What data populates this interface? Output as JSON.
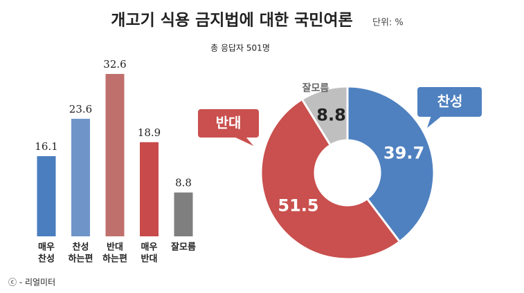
{
  "title": "개고기 식용 금지법에 대한 국민여론",
  "unit": "단위: %",
  "subtitle": "총 응답자 501명",
  "source": "ⓒ - 리얼미터",
  "chart_data": [
    {
      "type": "bar",
      "categories": [
        [
          "매우",
          "찬성"
        ],
        [
          "찬성",
          "하는편"
        ],
        [
          "반대",
          "하는편"
        ],
        [
          "매우",
          "반대"
        ],
        [
          "잘모름"
        ]
      ],
      "values": [
        16.1,
        23.6,
        32.6,
        18.9,
        8.8
      ],
      "colors": [
        "#4a7ebf",
        "#6f95c8",
        "#c0706c",
        "#c84a4a",
        "#7f7f7f"
      ]
    },
    {
      "type": "pie",
      "categories": [
        "찬성",
        "반대",
        "잘모름"
      ],
      "values": [
        39.7,
        51.5,
        8.8
      ],
      "colors": [
        "#4f81c0",
        "#c9504e",
        "#bfbfbf"
      ]
    }
  ]
}
